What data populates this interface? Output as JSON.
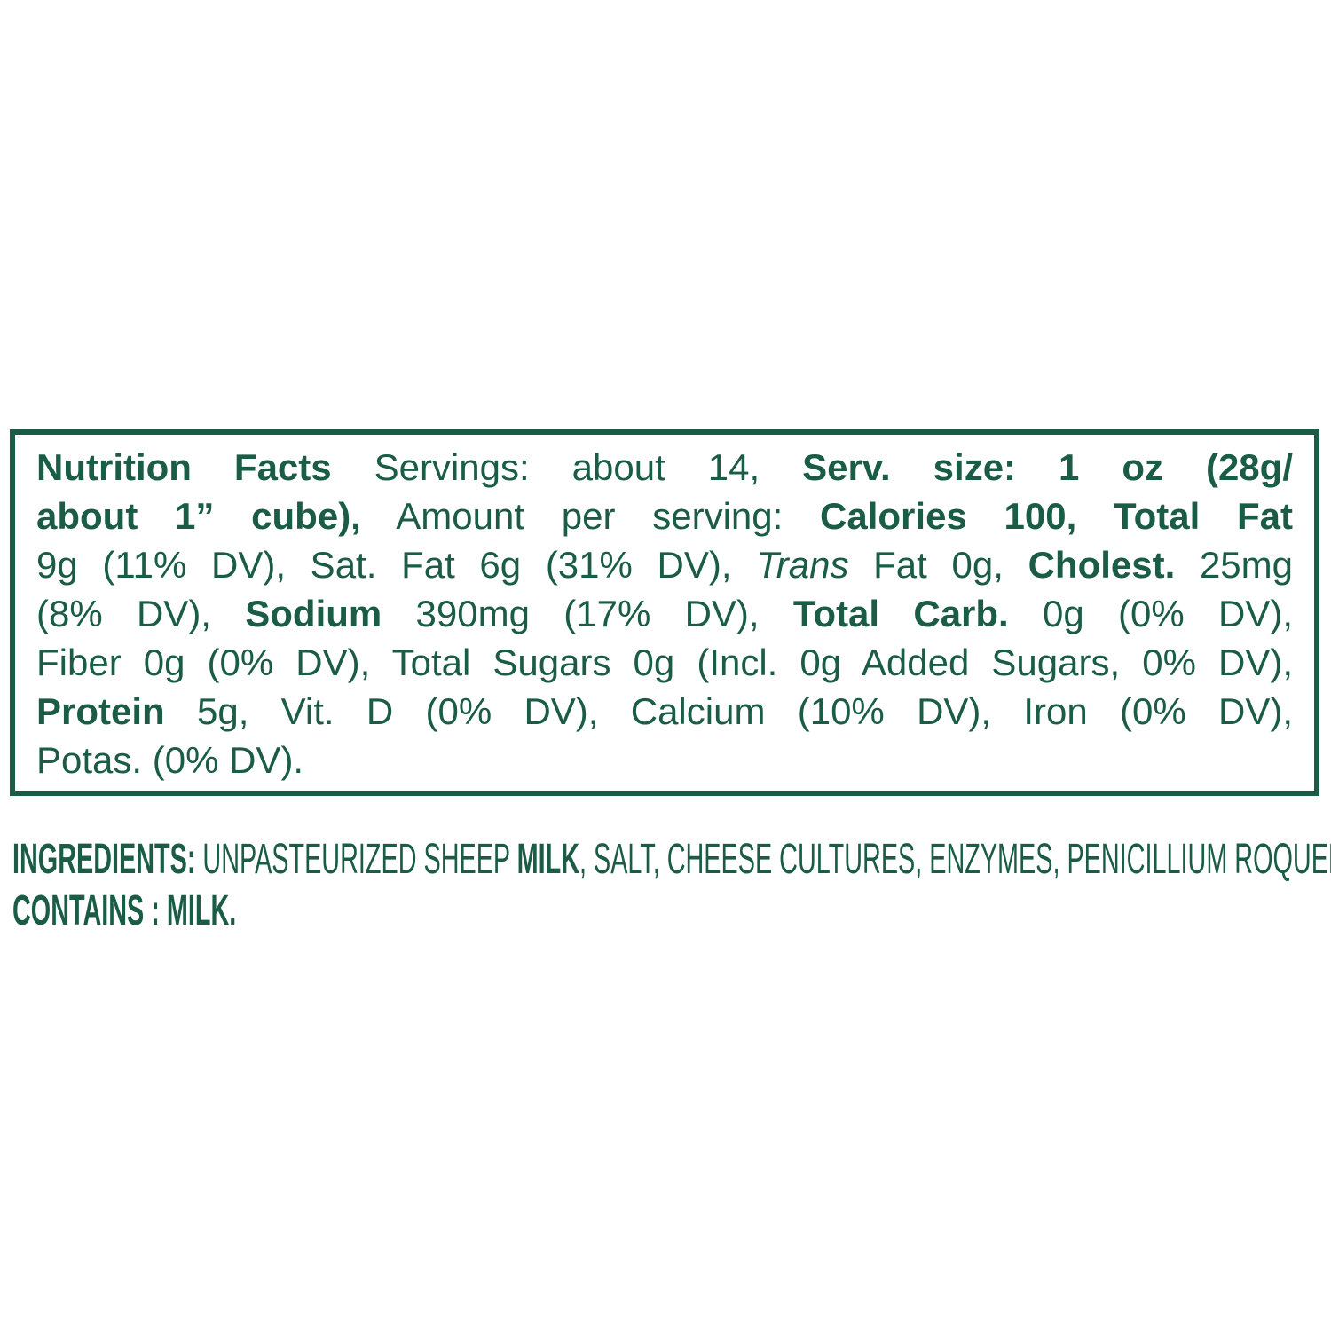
{
  "colors": {
    "text_green": "#1a5c45",
    "background": "#ffffff",
    "box_border": "#1a5c45"
  },
  "nutrition_facts": {
    "title": "Nutrition Facts",
    "servings_per_container": "about 14",
    "serving_size": "1 oz (28g/ about 1” cube)",
    "calories": "100",
    "nutrients": [
      {
        "name": "Total Fat",
        "amount": "9g",
        "dv": "11% DV"
      },
      {
        "name": "Sat. Fat",
        "amount": "6g",
        "dv": "31% DV"
      },
      {
        "name": "Trans Fat",
        "amount": "0g",
        "dv": ""
      },
      {
        "name": "Cholest.",
        "amount": "25mg",
        "dv": "8% DV"
      },
      {
        "name": "Sodium",
        "amount": "390mg",
        "dv": "17% DV"
      },
      {
        "name": "Total Carb.",
        "amount": "0g",
        "dv": "0% DV"
      },
      {
        "name": "Fiber",
        "amount": "0g",
        "dv": "0% DV"
      },
      {
        "name": "Total Sugars",
        "amount": "0g",
        "dv": ""
      },
      {
        "name": "Incl. Added Sugars",
        "amount": "0g",
        "dv": "0% DV"
      },
      {
        "name": "Protein",
        "amount": "5g",
        "dv": ""
      },
      {
        "name": "Vit. D",
        "amount": "",
        "dv": "0% DV"
      },
      {
        "name": "Calcium",
        "amount": "",
        "dv": "10% DV"
      },
      {
        "name": "Iron",
        "amount": "",
        "dv": "0% DV"
      },
      {
        "name": "Potas.",
        "amount": "",
        "dv": "0% DV"
      }
    ],
    "lines": [
      {
        "segments": [
          {
            "t": "Nutrition Facts",
            "s": "bold"
          },
          {
            "t": " Servings: about 14, ",
            "s": "regular"
          },
          {
            "t": "Serv. size: 1 oz (28g/",
            "s": "bold"
          }
        ]
      },
      {
        "segments": [
          {
            "t": "about 1” cube),",
            "s": "bold"
          },
          {
            "t": " Amount per serving: ",
            "s": "regular"
          },
          {
            "t": "Calories 100, Total Fat",
            "s": "bold"
          }
        ]
      },
      {
        "segments": [
          {
            "t": "9g (11% DV), Sat. Fat 6g (31% DV), ",
            "s": "regular"
          },
          {
            "t": "Trans",
            "s": "italic"
          },
          {
            "t": " Fat 0g, ",
            "s": "regular"
          },
          {
            "t": "Cholest.",
            "s": "bold"
          },
          {
            "t": " 25mg",
            "s": "regular"
          }
        ]
      },
      {
        "segments": [
          {
            "t": "(8% DV), ",
            "s": "regular"
          },
          {
            "t": "Sodium",
            "s": "bold"
          },
          {
            "t": " 390mg (17% DV), ",
            "s": "regular"
          },
          {
            "t": "Total Carb.",
            "s": "bold"
          },
          {
            "t": " 0g (0% DV),",
            "s": "regular"
          }
        ]
      },
      {
        "segments": [
          {
            "t": "Fiber 0g (0% DV), Total Sugars 0g (Incl. 0g Added Sugars, 0% DV),",
            "s": "regular"
          }
        ]
      },
      {
        "segments": [
          {
            "t": "Protein",
            "s": "bold"
          },
          {
            "t": " 5g, Vit. D (0% DV), Calcium (10% DV), Iron (0% DV),",
            "s": "regular"
          }
        ]
      },
      {
        "segments": [
          {
            "t": "Potas. (0% DV).",
            "s": "regular"
          }
        ]
      }
    ]
  },
  "ingredients_section": {
    "ingredients_line": [
      {
        "t": "INGREDIENTS:",
        "s": "bold"
      },
      {
        "t": " UNPASTEURIZED SHEEP ",
        "s": "regular"
      },
      {
        "t": "MILK",
        "s": "bold"
      },
      {
        "t": ", SALT, CHEESE CULTURES, ENZYMES, PENICILLIUM ROQUEFORTI.",
        "s": "regular"
      }
    ],
    "contains_line": [
      {
        "t": "CONTAINS : MILK.",
        "s": "bold"
      }
    ]
  }
}
